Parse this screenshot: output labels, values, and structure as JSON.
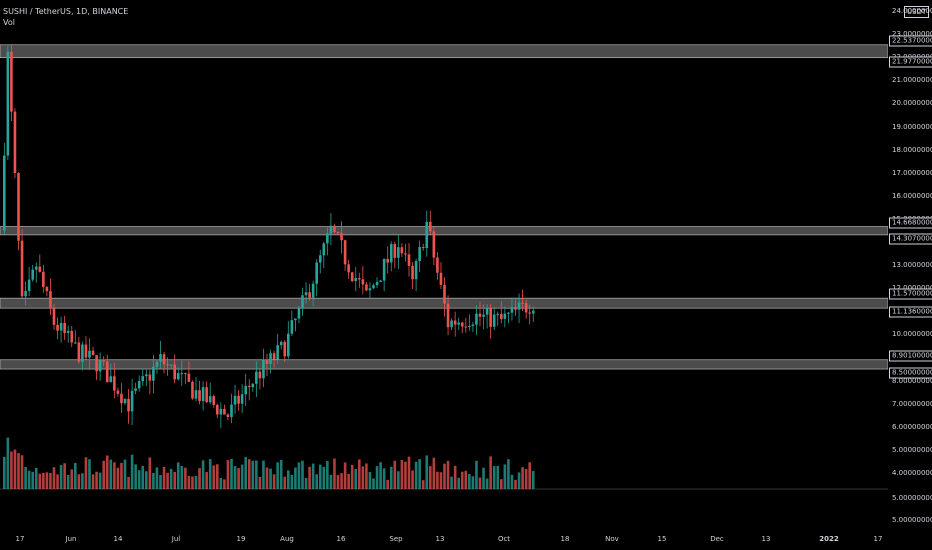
{
  "header": {
    "symbol_line": "SUSHI / TetherUS, 1D, BINANCE",
    "volume_label": "Vol"
  },
  "price_axis": {
    "currency": "USDT",
    "ticks": [
      "24.00000000",
      "23.00000000",
      "22.00000000",
      "21.00000000",
      "20.00000000",
      "19.00000000",
      "18.00000000",
      "17.00000000",
      "16.00000000",
      "15.00000000",
      "14.00000000",
      "13.00000000",
      "12.00000000",
      "11.00000000",
      "10.00000000",
      "9.00000000",
      "8.00000000",
      "7.00000000",
      "6.00000000",
      "5.00000000",
      "4.00000000"
    ],
    "level_labels": [
      "22.53700000",
      "21.97700000",
      "14.66800000",
      "14.30700000",
      "11.57000000",
      "11.13600000",
      "8.90100000",
      "8.50000000"
    ],
    "volume_ticks": [
      "5.00000000",
      "5.00000000"
    ]
  },
  "time_axis": {
    "labels": [
      {
        "text": "17",
        "year": false
      },
      {
        "text": "Jun",
        "year": false
      },
      {
        "text": "14",
        "year": false
      },
      {
        "text": "Jul",
        "year": false
      },
      {
        "text": "19",
        "year": false
      },
      {
        "text": "Aug",
        "year": false
      },
      {
        "text": "16",
        "year": false
      },
      {
        "text": "Sep",
        "year": false
      },
      {
        "text": "13",
        "year": false
      },
      {
        "text": "Oct",
        "year": false
      },
      {
        "text": "18",
        "year": false
      },
      {
        "text": "Nov",
        "year": false
      },
      {
        "text": "15",
        "year": false
      },
      {
        "text": "Dec",
        "year": false
      },
      {
        "text": "13",
        "year": false
      },
      {
        "text": "2022",
        "year": true
      },
      {
        "text": "17",
        "year": false
      }
    ]
  },
  "colors": {
    "up": "#26a69a",
    "down": "#ef5350",
    "zone": "#8a8a8a",
    "background": "#000000",
    "text": "#d1d4dc"
  },
  "chart_data": {
    "type": "candlestick",
    "title": "SUSHI / TetherUS, 1D, BINANCE",
    "ylim": [
      4,
      24
    ],
    "zones": [
      {
        "high": 22.537,
        "low": 21.977
      },
      {
        "high": 14.668,
        "low": 14.307
      },
      {
        "high": 11.57,
        "low": 11.136
      },
      {
        "high": 8.901,
        "low": 8.5
      }
    ],
    "close_path_checkpoints": [
      {
        "date": "May 17",
        "close": 14.5
      },
      {
        "date": "May 19",
        "close": 22.0
      },
      {
        "date": "May 23",
        "close": 11.0
      },
      {
        "date": "May 27",
        "close": 13.0
      },
      {
        "date": "Jun 1",
        "close": 10.5
      },
      {
        "date": "Jun 8",
        "close": 9.2
      },
      {
        "date": "Jun 14",
        "close": 8.7
      },
      {
        "date": "Jun 22",
        "close": 7.0
      },
      {
        "date": "Jul 1",
        "close": 8.9
      },
      {
        "date": "Jul 10",
        "close": 7.6
      },
      {
        "date": "Jul 20",
        "close": 6.5
      },
      {
        "date": "Jul 28",
        "close": 8.2
      },
      {
        "date": "Aug 5",
        "close": 9.5
      },
      {
        "date": "Aug 12",
        "close": 12.0
      },
      {
        "date": "Aug 18",
        "close": 14.5
      },
      {
        "date": "Aug 28",
        "close": 11.6
      },
      {
        "date": "Sep 6",
        "close": 14.0
      },
      {
        "date": "Sep 10",
        "close": 12.2
      },
      {
        "date": "Sep 14",
        "close": 14.8
      },
      {
        "date": "Sep 20",
        "close": 10.5
      },
      {
        "date": "Sep 28",
        "close": 10.8
      },
      {
        "date": "Oct 5",
        "close": 10.6
      },
      {
        "date": "Oct 14",
        "close": 11.4
      }
    ]
  }
}
